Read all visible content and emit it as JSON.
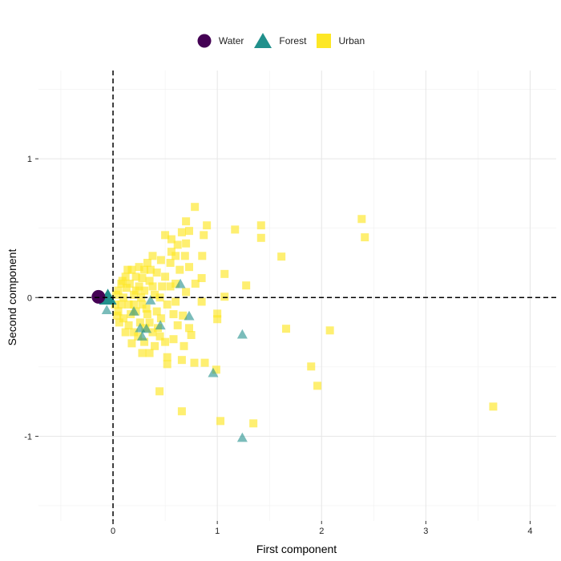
{
  "chart_data": {
    "type": "scatter",
    "xlabel": "First component",
    "ylabel": "Second component",
    "xlim": [
      -0.715,
      4.25
    ],
    "ylim": [
      -1.61,
      1.636
    ],
    "x_ticks": [
      0,
      1,
      2,
      3,
      4
    ],
    "y_ticks": [
      -1,
      0,
      1
    ],
    "x_tick_labels": [
      "0",
      "1",
      "2",
      "3",
      "4"
    ],
    "y_tick_labels": [
      "-1",
      "0",
      "1"
    ],
    "grid": true,
    "reference_lines": {
      "x": 0,
      "y": 0,
      "style": "dashed"
    },
    "legend_position": "top",
    "series": [
      {
        "name": "Urban",
        "marker": "square",
        "color": "#FDE725",
        "points": [
          [
            0.785,
            0.653
          ],
          [
            2.385,
            0.566
          ],
          [
            2.415,
            0.434
          ],
          [
            1.17,
            0.49
          ],
          [
            1.42,
            0.52
          ],
          [
            1.42,
            0.43
          ],
          [
            1.615,
            0.295
          ],
          [
            1.277,
            0.087
          ],
          [
            1.07,
            0.17
          ],
          [
            1.07,
            0.006
          ],
          [
            1.0,
            -0.116
          ],
          [
            1.0,
            -0.156
          ],
          [
            1.66,
            -0.225
          ],
          [
            2.08,
            -0.237
          ],
          [
            1.9,
            -0.497
          ],
          [
            1.96,
            -0.636
          ],
          [
            3.646,
            -0.786
          ],
          [
            1.03,
            -0.89
          ],
          [
            1.346,
            -0.907
          ],
          [
            0.99,
            -0.52
          ],
          [
            0.66,
            -0.82
          ],
          [
            0.446,
            -0.676
          ],
          [
            0.9,
            0.52
          ],
          [
            0.7,
            0.549
          ],
          [
            0.73,
            0.48
          ],
          [
            0.7,
            0.39
          ],
          [
            0.87,
            0.45
          ],
          [
            0.855,
            0.3
          ],
          [
            0.66,
            0.47
          ],
          [
            0.56,
            0.42
          ],
          [
            0.5,
            0.45
          ],
          [
            0.62,
            0.38
          ],
          [
            0.69,
            0.3
          ],
          [
            0.6,
            0.3
          ],
          [
            0.73,
            0.22
          ],
          [
            0.85,
            0.14
          ],
          [
            0.55,
            0.25
          ],
          [
            0.64,
            0.2
          ],
          [
            0.79,
            0.1
          ],
          [
            0.7,
            0.04
          ],
          [
            0.85,
            -0.03
          ],
          [
            0.6,
            -0.03
          ],
          [
            0.67,
            -0.13
          ],
          [
            0.75,
            -0.27
          ],
          [
            0.68,
            -0.35
          ],
          [
            0.66,
            -0.45
          ],
          [
            0.78,
            -0.47
          ],
          [
            0.88,
            -0.47
          ],
          [
            0.73,
            -0.22
          ],
          [
            0.52,
            -0.48
          ],
          [
            0.52,
            -0.43
          ],
          [
            0.58,
            -0.3
          ],
          [
            0.45,
            -0.28
          ],
          [
            0.4,
            -0.35
          ],
          [
            0.35,
            -0.4
          ],
          [
            0.28,
            -0.4
          ],
          [
            0.3,
            -0.32
          ],
          [
            0.38,
            -0.25
          ],
          [
            0.46,
            -0.15
          ],
          [
            0.52,
            -0.05
          ],
          [
            0.47,
            0.08
          ],
          [
            0.42,
            0.18
          ],
          [
            0.46,
            0.27
          ],
          [
            0.38,
            0.3
          ],
          [
            0.33,
            0.25
          ],
          [
            0.3,
            0.2
          ],
          [
            0.35,
            0.12
          ],
          [
            0.4,
            0.02
          ],
          [
            0.32,
            -0.08
          ],
          [
            0.26,
            -0.18
          ],
          [
            0.2,
            -0.25
          ],
          [
            0.15,
            -0.2
          ],
          [
            0.1,
            -0.15
          ],
          [
            0.05,
            -0.1
          ],
          [
            0.02,
            -0.05
          ],
          [
            0.05,
            0.05
          ],
          [
            0.08,
            0.1
          ],
          [
            0.12,
            0.15
          ],
          [
            0.18,
            0.2
          ],
          [
            0.22,
            0.15
          ],
          [
            0.25,
            0.08
          ],
          [
            0.2,
            0.02
          ],
          [
            0.15,
            -0.05
          ],
          [
            0.22,
            -0.1
          ],
          [
            0.28,
            -0.05
          ],
          [
            0.3,
            0.05
          ],
          [
            0.1,
            0.0
          ],
          [
            0.13,
            0.07
          ],
          [
            0.17,
            -0.12
          ],
          [
            0.08,
            -0.05
          ],
          [
            0.25,
            0.22
          ],
          [
            0.28,
            0.14
          ],
          [
            0.35,
            -0.18
          ],
          [
            0.42,
            -0.1
          ],
          [
            0.45,
            0.0
          ],
          [
            0.38,
            0.08
          ],
          [
            0.24,
            -0.28
          ],
          [
            0.18,
            -0.33
          ],
          [
            0.12,
            -0.25
          ],
          [
            0.06,
            -0.18
          ],
          [
            0.03,
            0.02
          ],
          [
            0.16,
            0.1
          ],
          [
            0.2,
            -0.05
          ],
          [
            0.27,
            0.0
          ],
          [
            0.33,
            -0.12
          ],
          [
            0.5,
            0.15
          ],
          [
            0.55,
            0.08
          ],
          [
            0.58,
            -0.12
          ],
          [
            0.62,
            -0.2
          ],
          [
            0.43,
            -0.22
          ],
          [
            0.5,
            -0.32
          ],
          [
            0.56,
            0.33
          ],
          [
            0.6,
            0.1
          ],
          [
            0.36,
            0.2
          ],
          [
            0.14,
            0.2
          ],
          [
            0.09,
            0.12
          ],
          [
            0.04,
            -0.13
          ],
          [
            0.22,
            0.05
          ],
          [
            0.31,
            -0.22
          ]
        ]
      },
      {
        "name": "Forest",
        "marker": "triangle",
        "color": "#21908C",
        "points": [
          [
            -0.05,
            0.0
          ],
          [
            1.24,
            -0.266
          ],
          [
            0.96,
            -0.543
          ],
          [
            1.24,
            -1.01
          ],
          [
            0.646,
            0.098
          ],
          [
            0.73,
            -0.133
          ],
          [
            0.454,
            -0.2
          ],
          [
            0.32,
            -0.225
          ],
          [
            0.26,
            -0.22
          ],
          [
            0.36,
            -0.02
          ],
          [
            0.2,
            -0.1
          ],
          [
            -0.06,
            -0.09
          ],
          [
            0.28,
            -0.28
          ]
        ]
      },
      {
        "name": "Water",
        "marker": "circle",
        "color": "#440154",
        "points": [
          [
            -0.14,
            0.005
          ]
        ]
      }
    ]
  },
  "legend": {
    "items": [
      "Water",
      "Forest",
      "Urban"
    ]
  }
}
